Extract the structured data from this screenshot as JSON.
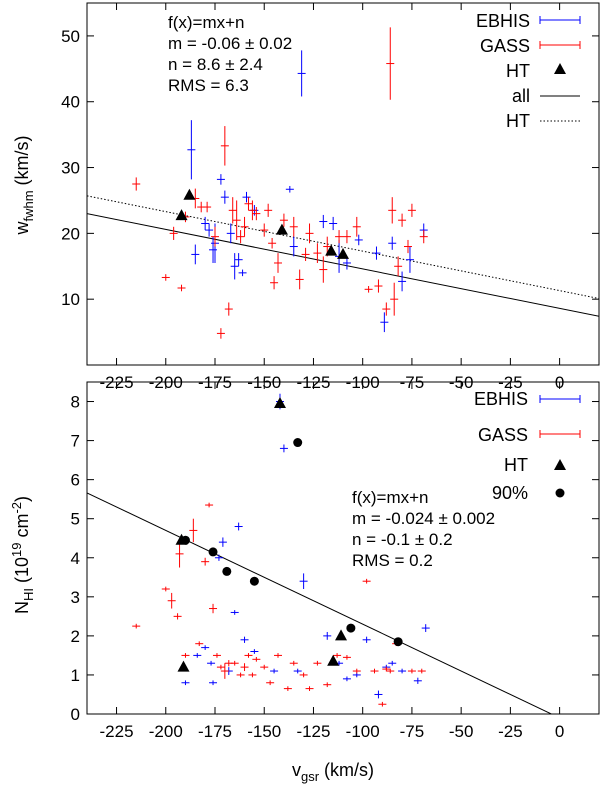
{
  "chart_data": [
    {
      "type": "scatter",
      "panel": "top",
      "xlim": [
        -240,
        20
      ],
      "ylim": [
        0,
        55
      ],
      "x_ticks": [
        "-225",
        "-200",
        "-175",
        "-150",
        "-125",
        "-100",
        "-75",
        "-50",
        "-25",
        "0"
      ],
      "x_tick_values": [
        -225,
        -200,
        -175,
        -150,
        -125,
        -100,
        -75,
        -50,
        -25,
        0
      ],
      "y_ticks": [
        "10",
        "20",
        "30",
        "40",
        "50"
      ],
      "y_tick_values": [
        10,
        20,
        30,
        40,
        50
      ],
      "ylabel": {
        "main": "w",
        "sub": "fwhm",
        "rest": " (km/s)"
      },
      "annotation": [
        {
          "main": "f(x)=mx+n"
        },
        {
          "main": "m = -0.06 ",
          "pm": "±",
          "rest": " 0.02"
        },
        {
          "main": "n = 8.6 ",
          "pm": "±",
          "rest": " 2.4"
        },
        {
          "main": "RMS = 6.3"
        }
      ],
      "legend": [
        {
          "label": "EBHIS",
          "kind": "errbar",
          "color": "#0000ff"
        },
        {
          "label": "GASS",
          "kind": "errbar",
          "color": "#ff0000"
        },
        {
          "label": "HT",
          "kind": "triangle",
          "color": "#000000"
        },
        {
          "label": "all",
          "kind": "solid",
          "color": "#000000"
        },
        {
          "label": "HT",
          "kind": "dotted",
          "color": "#000000"
        }
      ],
      "legend_position": "top-right",
      "series": [
        {
          "name": "EBHIS",
          "color": "#0000ff",
          "points": [
            [
              -187,
              32.7,
              4.5
            ],
            [
              -185,
              16.8,
              1.5
            ],
            [
              -180,
              21.5,
              1.0
            ],
            [
              -178,
              20.5,
              1.0
            ],
            [
              -176,
              17.5,
              2.0
            ],
            [
              -175,
              18.5,
              3.0
            ],
            [
              -172,
              28.2,
              0.8
            ],
            [
              -170,
              25.5,
              1.0
            ],
            [
              -167,
              20.0,
              1.5
            ],
            [
              -165,
              15.0,
              2.0
            ],
            [
              -163,
              16.0,
              1.0
            ],
            [
              -161,
              14.0,
              0.5
            ],
            [
              -159,
              25.5,
              0.8
            ],
            [
              -155,
              23.5,
              0.8
            ],
            [
              -137,
              26.7,
              0.5
            ],
            [
              -135,
              18.0,
              1.5
            ],
            [
              -131,
              44.3,
              3.5
            ],
            [
              -120,
              21.8,
              1.0
            ],
            [
              -115,
              21.5,
              1.0
            ],
            [
              -112,
              16.5,
              2.5
            ],
            [
              -108,
              15.5,
              1.0
            ],
            [
              -102,
              19.0,
              0.8
            ],
            [
              -93,
              17.0,
              1.0
            ],
            [
              -89,
              6.5,
              1.5
            ],
            [
              -85,
              18.5,
              1.0
            ],
            [
              -80,
              12.7,
              1.5
            ],
            [
              -76,
              16.0,
              2.0
            ],
            [
              -69,
              20.5,
              1.0
            ]
          ]
        },
        {
          "name": "GASS",
          "color": "#ff0000",
          "points": [
            [
              -215,
              27.5,
              1.0
            ],
            [
              -200,
              13.3,
              0.5
            ],
            [
              -196,
              20.0,
              1.0
            ],
            [
              -192,
              11.7,
              0.5
            ],
            [
              -190,
              22.5,
              0.8
            ],
            [
              -185,
              25.3,
              1.5
            ],
            [
              -182,
              24.0,
              0.8
            ],
            [
              -179,
              24.0,
              0.8
            ],
            [
              -175,
              19.5,
              1.5
            ],
            [
              -172,
              4.8,
              0.8
            ],
            [
              -170,
              33.3,
              3.0
            ],
            [
              -168,
              8.5,
              1.0
            ],
            [
              -166,
              23.5,
              2.0
            ],
            [
              -164,
              22.0,
              3.0
            ],
            [
              -162,
              19.5,
              1.0
            ],
            [
              -160,
              21.0,
              1.5
            ],
            [
              -158,
              24.5,
              1.0
            ],
            [
              -156,
              23.5,
              1.5
            ],
            [
              -154,
              23.0,
              1.0
            ],
            [
              -150,
              20.5,
              1.0
            ],
            [
              -148,
              23.5,
              1.0
            ],
            [
              -146,
              18.5,
              0.8
            ],
            [
              -145,
              12.5,
              1.0
            ],
            [
              -143,
              15.5,
              1.5
            ],
            [
              -140,
              22.0,
              1.0
            ],
            [
              -135,
              21.0,
              1.5
            ],
            [
              -132,
              13.0,
              1.5
            ],
            [
              -129,
              16.8,
              1.0
            ],
            [
              -127,
              20.0,
              1.5
            ],
            [
              -123,
              17.0,
              1.5
            ],
            [
              -120,
              14.5,
              2.0
            ],
            [
              -118,
              18.0,
              1.5
            ],
            [
              -112,
              19.5,
              1.0
            ],
            [
              -108,
              19.5,
              1.0
            ],
            [
              -103,
              21.0,
              1.5
            ],
            [
              -97,
              11.5,
              0.5
            ],
            [
              -92,
              12.0,
              1.0
            ],
            [
              -88,
              8.5,
              1.0
            ],
            [
              -86,
              45.8,
              5.5
            ],
            [
              -85,
              23.5,
              2.0
            ],
            [
              -84,
              10.0,
              2.5
            ],
            [
              -82,
              15.0,
              1.5
            ],
            [
              -80,
              22.0,
              1.0
            ],
            [
              -77,
              18.0,
              1.0
            ],
            [
              -75,
              23.5,
              1.0
            ],
            [
              -69,
              19.5,
              1.0
            ]
          ]
        },
        {
          "name": "HT",
          "color": "#000000",
          "points": [
            [
              -192,
              22.7
            ],
            [
              -188,
              25.8
            ],
            [
              -141,
              20.5
            ],
            [
              -116,
              17.3
            ],
            [
              -110,
              16.8
            ]
          ]
        }
      ],
      "fits": [
        {
          "name": "all",
          "style": "solid",
          "m": -0.06,
          "n": 8.6
        },
        {
          "name": "HT",
          "style": "dotted",
          "m": -0.06,
          "n": 11.3
        }
      ]
    },
    {
      "type": "scatter",
      "panel": "bottom",
      "xlim": [
        -240,
        20
      ],
      "ylim": [
        0,
        8.5
      ],
      "x_ticks": [
        "-225",
        "-200",
        "-175",
        "-150",
        "-125",
        "-100",
        "-75",
        "-50",
        "-25",
        "0"
      ],
      "x_tick_values": [
        -225,
        -200,
        -175,
        -150,
        -125,
        -100,
        -75,
        -50,
        -25,
        0
      ],
      "y_ticks": [
        "0",
        "1",
        "2",
        "3",
        "4",
        "5",
        "6",
        "7",
        "8"
      ],
      "y_tick_values": [
        0,
        1,
        2,
        3,
        4,
        5,
        6,
        7,
        8
      ],
      "xlabel": {
        "main": "v",
        "sub": "gsr",
        "rest": " (km/s)"
      },
      "ylabel": {
        "main": "N",
        "sub": "HI",
        "rest": " (10",
        "sup": "19",
        "rest2": " cm",
        "sup2": "-2",
        "rest3": ")"
      },
      "annotation": [
        {
          "main": "f(x)=mx+n"
        },
        {
          "main": "m = -0.024 ",
          "pm": "±",
          "rest": " 0.002"
        },
        {
          "main": "n = -0.1 ",
          "pm": "±",
          "rest": " 0.2"
        },
        {
          "main": "RMS = 0.2"
        }
      ],
      "legend": [
        {
          "label": "EBHIS",
          "kind": "errbar",
          "color": "#0000ff"
        },
        {
          "label": "GASS",
          "kind": "errbar",
          "color": "#ff0000"
        },
        {
          "label": "HT",
          "kind": "triangle",
          "color": "#000000"
        },
        {
          "label": "90%",
          "kind": "circle",
          "color": "#000000"
        }
      ],
      "legend_position": "top-right",
      "series": [
        {
          "name": "EBHIS",
          "color": "#0000ff",
          "points": [
            [
              -190,
              0.8,
              0.06
            ],
            [
              -184,
              1.5,
              0.06
            ],
            [
              -180,
              1.7,
              0.06
            ],
            [
              -177,
              1.3,
              0.06
            ],
            [
              -176,
              0.8,
              0.06
            ],
            [
              -173,
              4.0,
              0.08
            ],
            [
              -171,
              4.4,
              0.12
            ],
            [
              -168,
              1.1,
              0.1
            ],
            [
              -165,
              2.6,
              0.06
            ],
            [
              -163,
              4.8,
              0.1
            ],
            [
              -160,
              1.9,
              0.08
            ],
            [
              -155,
              1.6,
              0.06
            ],
            [
              -145,
              1.1,
              0.06
            ],
            [
              -142,
              8.0,
              0.2
            ],
            [
              -140,
              6.8,
              0.1
            ],
            [
              -133,
              1.1,
              0.06
            ],
            [
              -130,
              3.4,
              0.2
            ],
            [
              -118,
              2.0,
              0.1
            ],
            [
              -112,
              1.3,
              0.06
            ],
            [
              -108,
              0.9,
              0.06
            ],
            [
              -103,
              1.0,
              0.06
            ],
            [
              -98,
              1.9,
              0.08
            ],
            [
              -92,
              0.5,
              0.1
            ],
            [
              -88,
              1.2,
              0.06
            ],
            [
              -85,
              1.3,
              0.06
            ],
            [
              -80,
              1.1,
              0.06
            ],
            [
              -72,
              0.85,
              0.08
            ],
            [
              -68,
              2.2,
              0.1
            ]
          ]
        },
        {
          "name": "GASS",
          "color": "#ff0000",
          "points": [
            [
              -215,
              2.25,
              0.06
            ],
            [
              -200,
              3.2,
              0.06
            ],
            [
              -197,
              2.9,
              0.2
            ],
            [
              -194,
              2.5,
              0.08
            ],
            [
              -193,
              4.1,
              0.35
            ],
            [
              -190,
              1.5,
              0.06
            ],
            [
              -186,
              4.7,
              0.3
            ],
            [
              -183,
              1.8,
              0.06
            ],
            [
              -180,
              3.9,
              0.1
            ],
            [
              -178,
              5.35,
              0.06
            ],
            [
              -176,
              2.7,
              0.12
            ],
            [
              -174,
              1.5,
              0.06
            ],
            [
              -172,
              1.2,
              0.06
            ],
            [
              -170,
              1.1,
              0.2
            ],
            [
              -168,
              1.3,
              0.08
            ],
            [
              -165,
              1.3,
              0.06
            ],
            [
              -162,
              1.0,
              0.06
            ],
            [
              -160,
              1.2,
              0.1
            ],
            [
              -158,
              1.5,
              0.06
            ],
            [
              -156,
              1.0,
              0.06
            ],
            [
              -154,
              1.4,
              0.06
            ],
            [
              -150,
              1.2,
              0.06
            ],
            [
              -147,
              0.8,
              0.06
            ],
            [
              -143,
              1.5,
              0.06
            ],
            [
              -138,
              0.65,
              0.06
            ],
            [
              -135,
              1.3,
              0.06
            ],
            [
              -130,
              1.0,
              0.06
            ],
            [
              -127,
              0.65,
              0.06
            ],
            [
              -123,
              1.3,
              0.06
            ],
            [
              -118,
              0.75,
              0.06
            ],
            [
              -113,
              1.5,
              0.06
            ],
            [
              -108,
              1.45,
              0.06
            ],
            [
              -103,
              1.1,
              0.06
            ],
            [
              -98,
              3.4,
              0.06
            ],
            [
              -94,
              1.1,
              0.06
            ],
            [
              -90,
              0.25,
              0.06
            ],
            [
              -88,
              1.15,
              0.06
            ],
            [
              -86,
              1.1,
              0.06
            ],
            [
              -83,
              1.8,
              0.06
            ],
            [
              -75,
              1.1,
              0.06
            ],
            [
              -70,
              1.1,
              0.06
            ]
          ]
        },
        {
          "name": "HT",
          "color": "#000000",
          "points": [
            [
              -192,
              4.45
            ],
            [
              -191,
              1.2
            ],
            [
              -142,
              7.95
            ],
            [
              -115,
              1.35
            ],
            [
              -111,
              2.0
            ]
          ]
        },
        {
          "name": "90%",
          "color": "#000000",
          "points": [
            [
              -190,
              4.45
            ],
            [
              -176,
              4.15
            ],
            [
              -169,
              3.65
            ],
            [
              -155,
              3.4
            ],
            [
              -133,
              6.95
            ],
            [
              -106,
              2.2
            ],
            [
              -82,
              1.85
            ]
          ]
        }
      ],
      "fits": [
        {
          "name": "fit",
          "style": "solid",
          "m": -0.024,
          "n": -0.1
        }
      ]
    }
  ]
}
